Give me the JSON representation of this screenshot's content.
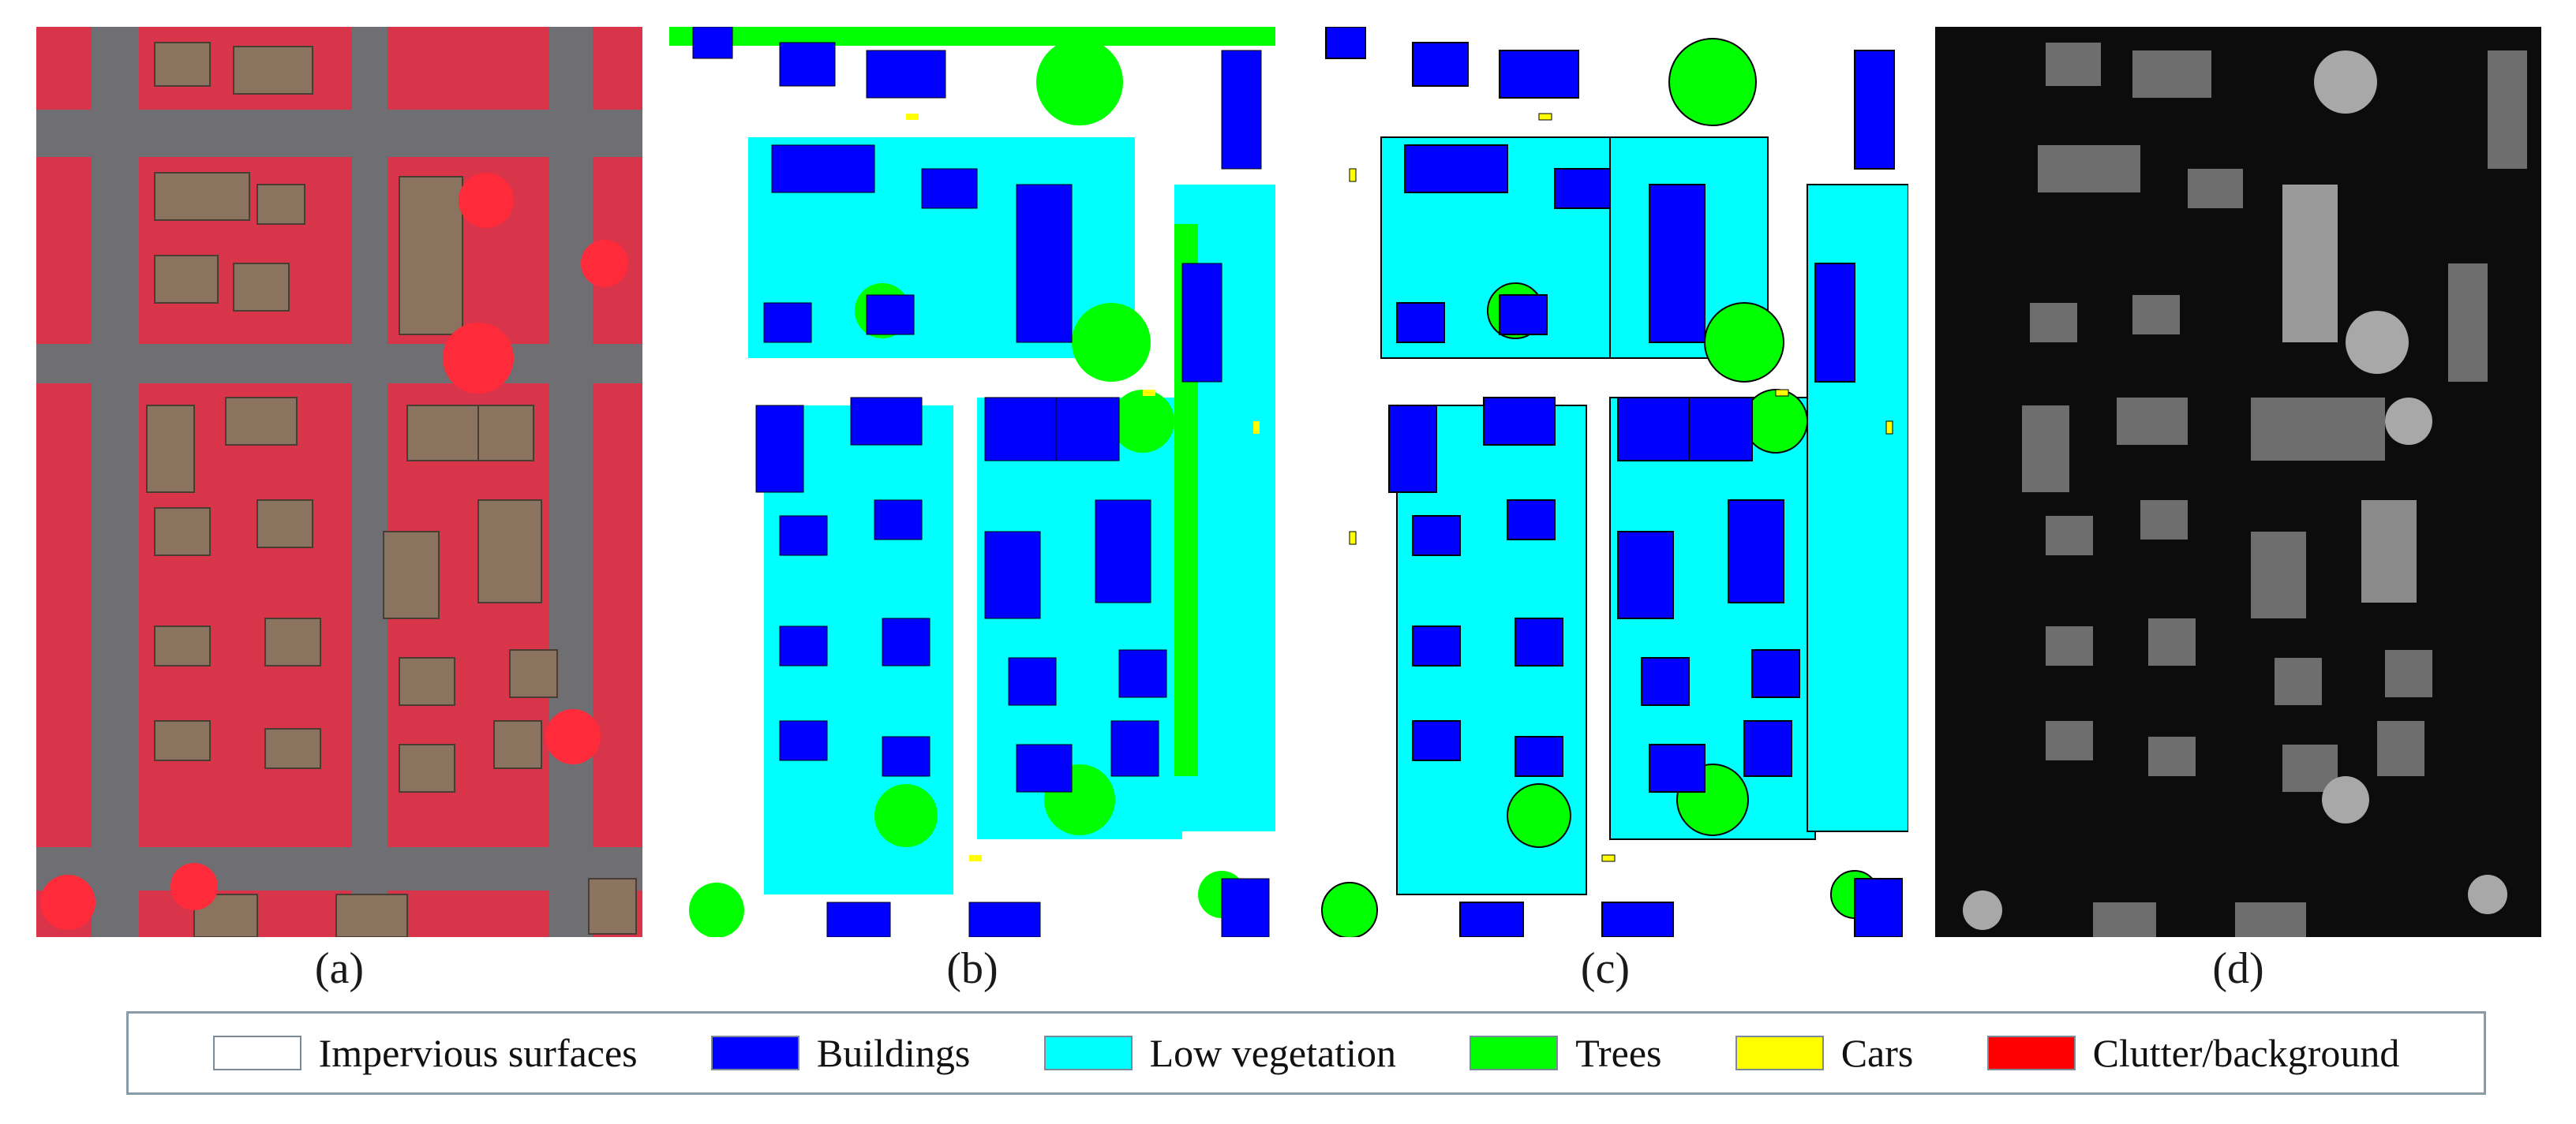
{
  "captions": {
    "a": "(a)",
    "b": "(b)",
    "c": "(c)",
    "d": "(d)"
  },
  "legend": [
    {
      "label": "Impervious surfaces",
      "color": "#ffffff"
    },
    {
      "label": "Buildings",
      "color": "#0000ff"
    },
    {
      "label": "Low vegetation",
      "color": "#00ffff"
    },
    {
      "label": "Trees",
      "color": "#00ff00"
    },
    {
      "label": "Cars",
      "color": "#ffff00"
    },
    {
      "label": "Clutter/background",
      "color": "#ff0000"
    }
  ]
}
